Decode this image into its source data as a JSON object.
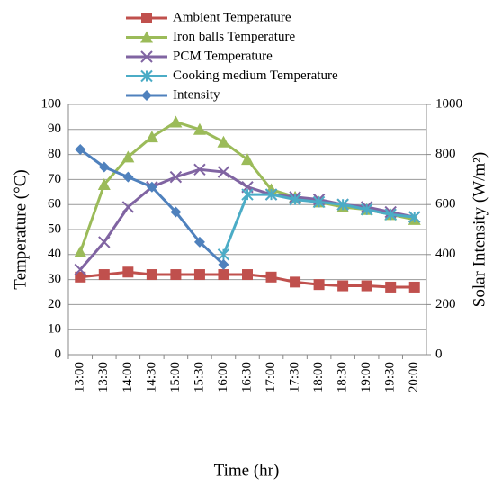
{
  "chart_data": {
    "type": "line",
    "x_label": "Time (hr)",
    "y_label": "Temperature (°C)",
    "y2_label": "Solar Intensity (W/m²)",
    "categories": [
      "13:00",
      "13:30",
      "14:00",
      "14:30",
      "15:00",
      "15:30",
      "16:00",
      "16:30",
      "17:00",
      "17:30",
      "18:00",
      "18:30",
      "19:00",
      "19:30",
      "20:00"
    ],
    "series": [
      {
        "name": "Ambient Temperature",
        "color": "#c0504d",
        "marker": "square",
        "values": [
          31,
          32,
          33,
          32,
          32,
          32,
          32,
          32,
          31,
          29,
          28,
          27.5,
          27.5,
          27,
          27
        ]
      },
      {
        "name": "Iron balls Temperature",
        "color": "#9bbb59",
        "marker": "triangle",
        "values": [
          41,
          68,
          79,
          87,
          93,
          90,
          85,
          78,
          66,
          63,
          61,
          59,
          58,
          56,
          54
        ]
      },
      {
        "name": "PCM Temperature",
        "color": "#8064a2",
        "marker": "x",
        "values": [
          34,
          45,
          59,
          67,
          71,
          74,
          73,
          67,
          64,
          63,
          62,
          60,
          59,
          57,
          55
        ]
      },
      {
        "name": "Cooking medium Temperature",
        "color": "#4bacc6",
        "marker": "star",
        "values": [
          null,
          null,
          null,
          null,
          null,
          null,
          40,
          64,
          64,
          62,
          61,
          60,
          58,
          56,
          55
        ]
      },
      {
        "name": "Intensity",
        "color": "#4f81bd",
        "marker": "diamond",
        "axis": "y2",
        "values": [
          820,
          750,
          710,
          670,
          570,
          450,
          360,
          null,
          null,
          null,
          null,
          null,
          null,
          null,
          null
        ]
      }
    ],
    "ylim": [
      0,
      100
    ],
    "yticks": [
      0,
      10,
      20,
      30,
      40,
      50,
      60,
      70,
      80,
      90,
      100
    ],
    "y2lim": [
      0,
      1000
    ],
    "y2ticks": [
      0,
      200,
      400,
      600,
      800,
      1000
    ],
    "grid": true,
    "legend": "top"
  }
}
